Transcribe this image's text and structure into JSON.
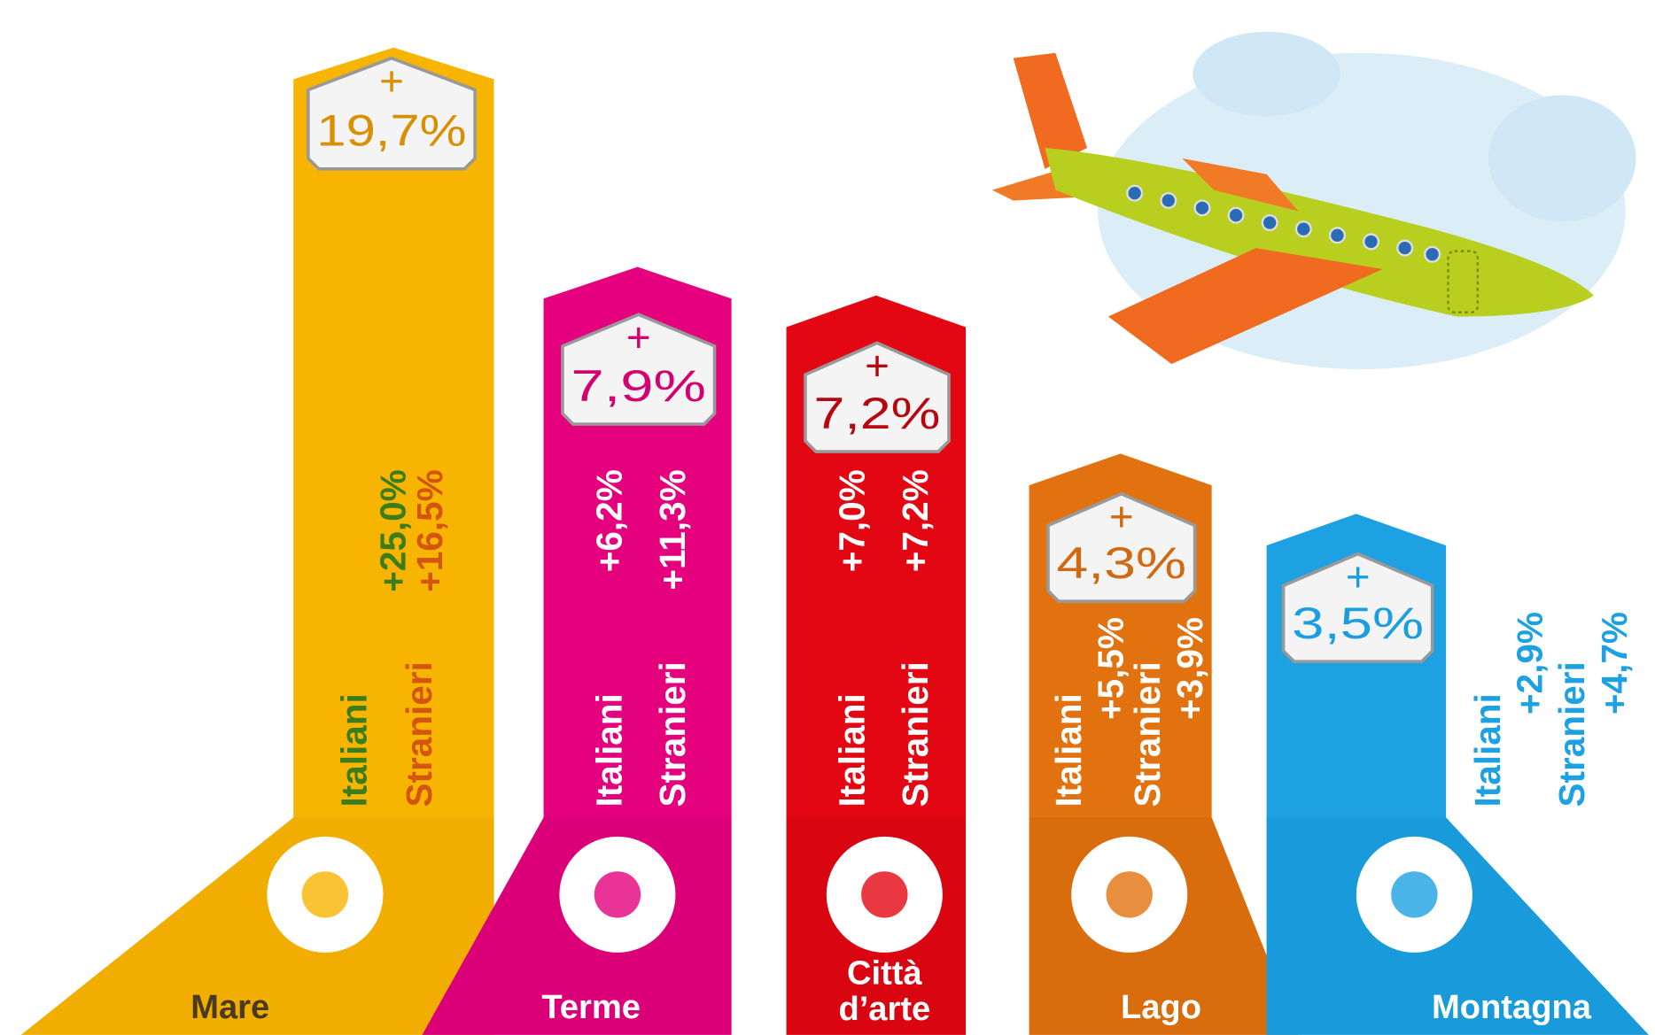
{
  "items": [
    {
      "name": "Mare",
      "plus": "+",
      "total": "19,7%",
      "italiani": "Italiani",
      "italiani_value": "+25,0%",
      "stranieri": "Stranieri",
      "stranieri_value": "+16,5%",
      "color": "#f7b400",
      "accent": "#e8a300",
      "text_color": "#d98f00"
    },
    {
      "name": "Terme",
      "plus": "+",
      "total": "7,9%",
      "italiani": "Italiani",
      "italiani_value": "+6,2%",
      "stranieri": "Stranieri",
      "stranieri_value": "+11,3%",
      "color": "#e5007d",
      "accent": "#c9006c",
      "text_color": "#d4006f"
    },
    {
      "name": "Città d’arte",
      "name_lines": [
        "Città",
        "d’arte"
      ],
      "plus": "+",
      "total": "7,2%",
      "italiani": "Italiani",
      "italiani_value": "+7,0%",
      "stranieri": "Stranieri",
      "stranieri_value": "+7,2%",
      "color": "#e30613",
      "accent": "#c5050f",
      "text_color": "#b8060f"
    },
    {
      "name": "Lago",
      "plus": "+",
      "total": "4,3%",
      "italiani": "Italiani",
      "italiani_value": "+5,5%",
      "stranieri": "Stranieri",
      "stranieri_value": "+3,9%",
      "color": "#e2720f",
      "accent": "#c9620a",
      "text_color": "#d06a12"
    },
    {
      "name": "Montagna",
      "plus": "+",
      "total": "3,5%",
      "italiani": "Italiani",
      "italiani_value": "+2,9%",
      "stranieri": "Stranieri",
      "stranieri_value": "+4,7%",
      "color": "#1da1e2",
      "accent": "#158ccb",
      "text_color": "#1b9ee0"
    }
  ]
}
